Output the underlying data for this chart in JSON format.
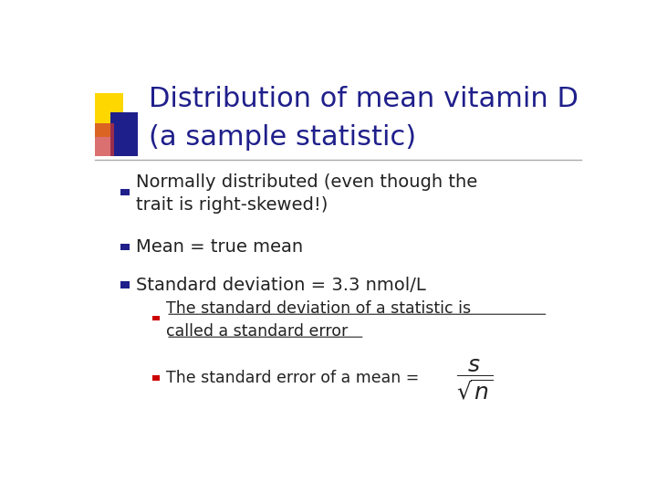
{
  "title_line1": "Distribution of mean vitamin D",
  "title_line2": "(a sample statistic)",
  "title_color": "#1F1F8B",
  "background_color": "#FFFFFF",
  "bullet_color": "#1F1F8B",
  "sub_bullet_color": "#CC0000",
  "bullet1a": "Normally distributed (even though the",
  "bullet1b": "trait is right-skewed!)",
  "bullet2": "Mean = true mean",
  "bullet3": "Standard deviation = 3.3 nmol/L",
  "sub_bullet1a": "The standard deviation of a statistic is",
  "sub_bullet1b": "called a standard error",
  "sub_bullet2": "The standard error of a mean =",
  "formula": "\\dfrac{s}{\\sqrt{n}}",
  "line_color": "#AAAAAA"
}
